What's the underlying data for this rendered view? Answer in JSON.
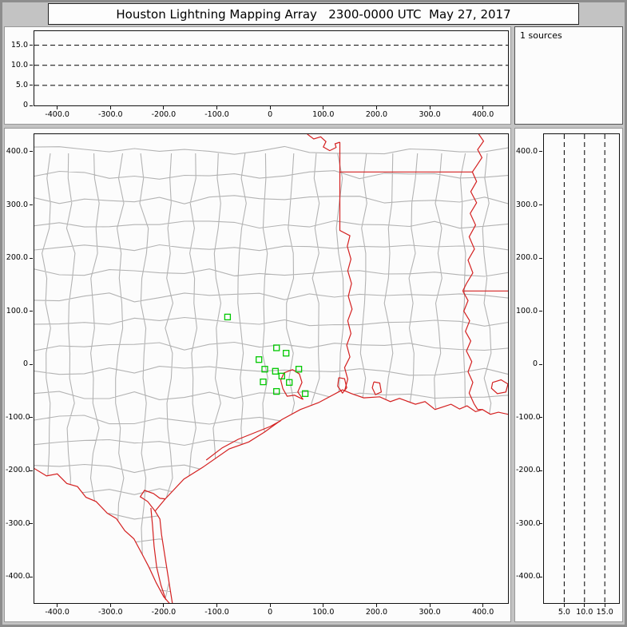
{
  "title": "Houston Lightning Mapping Array   2300-0000 UTC  May 27, 2017",
  "sources_label": "1 sources",
  "colors": {
    "state_border": "#d42020",
    "county_border": "#b3b3b3",
    "station": "#00c800",
    "dashed_line": "#000000",
    "panel_bg": "#fcfcfc",
    "window_bg": "#c3c3c3",
    "plot_border": "#111111"
  },
  "chart_data": [
    {
      "name": "altitude-ew",
      "type": "scatter",
      "xlim": [
        -443,
        447
      ],
      "ylim": [
        0,
        18.5
      ],
      "dashed_y": [
        5,
        10,
        15
      ],
      "x_ticks": [
        {
          "v": -400,
          "label": "-400.0"
        },
        {
          "v": -300,
          "label": "-300.0"
        },
        {
          "v": -200,
          "label": "-200.0"
        },
        {
          "v": -100,
          "label": "-100.0"
        },
        {
          "v": 0,
          "label": "0"
        },
        {
          "v": 100,
          "label": "100.0"
        },
        {
          "v": 200,
          "label": "200.0"
        },
        {
          "v": 300,
          "label": "300.0"
        },
        {
          "v": 400,
          "label": "400.0"
        }
      ],
      "y_ticks": [
        {
          "v": 15,
          "label": "15.0"
        },
        {
          "v": 10,
          "label": "10.0"
        },
        {
          "v": 5,
          "label": "5.0"
        },
        {
          "v": 0,
          "label": "0"
        }
      ],
      "points": []
    },
    {
      "name": "plan-view",
      "type": "scatter",
      "xlim": [
        -443,
        447
      ],
      "ylim": [
        -449,
        433
      ],
      "x_ticks": [
        {
          "v": -400,
          "label": "-400.0"
        },
        {
          "v": -300,
          "label": "-300.0"
        },
        {
          "v": -200,
          "label": "-200.0"
        },
        {
          "v": -100,
          "label": "-100.0"
        },
        {
          "v": 0,
          "label": "0"
        },
        {
          "v": 100,
          "label": "100.0"
        },
        {
          "v": 200,
          "label": "200.0"
        },
        {
          "v": 300,
          "label": "300.0"
        },
        {
          "v": 400,
          "label": "400.0"
        }
      ],
      "y_ticks": [
        {
          "v": 400,
          "label": "400.0"
        },
        {
          "v": 300,
          "label": "300.0"
        },
        {
          "v": 200,
          "label": "200.0"
        },
        {
          "v": 100,
          "label": "100.0"
        },
        {
          "v": 0,
          "label": "0"
        },
        {
          "v": -100,
          "label": "-100.0"
        },
        {
          "v": -200,
          "label": "-200.0"
        },
        {
          "v": -300,
          "label": "-300.0"
        },
        {
          "v": -400,
          "label": "-400.0"
        }
      ],
      "stations": [
        [
          -80,
          89
        ],
        [
          12,
          31
        ],
        [
          -21,
          9
        ],
        [
          30,
          21
        ],
        [
          -10,
          -9
        ],
        [
          10,
          -13
        ],
        [
          -13,
          -33
        ],
        [
          22,
          -22
        ],
        [
          36,
          -34
        ],
        [
          12,
          -51
        ],
        [
          54,
          -9
        ],
        [
          66,
          -55
        ]
      ]
    },
    {
      "name": "altitude-ns",
      "type": "scatter",
      "xlim": [
        0,
        18.5
      ],
      "ylim": [
        -449,
        433
      ],
      "dashed_x": [
        5,
        10,
        15
      ],
      "x_ticks": [
        {
          "v": 5,
          "label": "5.0"
        },
        {
          "v": 10,
          "label": "10.0"
        },
        {
          "v": 15,
          "label": "15.0"
        }
      ],
      "y_ticks": [
        {
          "v": 400,
          "label": "400.0"
        },
        {
          "v": 300,
          "label": "300.0"
        },
        {
          "v": 200,
          "label": "200.0"
        },
        {
          "v": 100,
          "label": "100.0"
        },
        {
          "v": 0,
          "label": "0"
        },
        {
          "v": -100,
          "label": "-100.0"
        },
        {
          "v": -200,
          "label": "-200.0"
        },
        {
          "v": -300,
          "label": "-300.0"
        },
        {
          "v": -400,
          "label": "-400.0"
        }
      ],
      "points": []
    }
  ],
  "map_features": {
    "rio_grande": [
      [
        -443,
        -196
      ],
      [
        -420,
        -210
      ],
      [
        -400,
        -206
      ],
      [
        -382,
        -224
      ],
      [
        -362,
        -230
      ],
      [
        -346,
        -250
      ],
      [
        -327,
        -258
      ],
      [
        -306,
        -280
      ],
      [
        -289,
        -290
      ],
      [
        -273,
        -313
      ],
      [
        -256,
        -328
      ],
      [
        -241,
        -356
      ],
      [
        -228,
        -381
      ],
      [
        -214,
        -411
      ],
      [
        -200,
        -437
      ],
      [
        -188,
        -451
      ],
      [
        -182,
        -460
      ]
    ],
    "coastline": [
      [
        -182,
        -460
      ],
      [
        -197,
        -365
      ],
      [
        -204,
        -320
      ],
      [
        -207,
        -291
      ],
      [
        -216,
        -276
      ],
      [
        -197,
        -253
      ],
      [
        -162,
        -216
      ],
      [
        -127,
        -194
      ],
      [
        -77,
        -159
      ],
      [
        -40,
        -146
      ],
      [
        -10,
        -127
      ],
      [
        22,
        -104
      ],
      [
        57,
        -85
      ],
      [
        91,
        -72
      ],
      [
        136,
        -48
      ],
      [
        153,
        -55
      ],
      [
        176,
        -63
      ],
      [
        206,
        -61
      ],
      [
        226,
        -70
      ],
      [
        243,
        -64
      ],
      [
        273,
        -75
      ],
      [
        291,
        -70
      ],
      [
        310,
        -85
      ],
      [
        340,
        -75
      ],
      [
        356,
        -84
      ],
      [
        370,
        -78
      ],
      [
        386,
        -89
      ],
      [
        399,
        -85
      ],
      [
        414,
        -94
      ],
      [
        429,
        -90
      ],
      [
        452,
        -95
      ]
    ],
    "tx_la_sabine_border": [
      [
        140,
        -50
      ],
      [
        146,
        -28
      ],
      [
        140,
        -6
      ],
      [
        150,
        14
      ],
      [
        144,
        36
      ],
      [
        152,
        58
      ],
      [
        146,
        82
      ],
      [
        154,
        104
      ],
      [
        147,
        128
      ],
      [
        153,
        152
      ],
      [
        146,
        176
      ],
      [
        152,
        198
      ],
      [
        145,
        222
      ],
      [
        150,
        242
      ],
      [
        131,
        252
      ],
      [
        131,
        418
      ]
    ],
    "red_river": [
      [
        70,
        433
      ],
      [
        82,
        424
      ],
      [
        95,
        428
      ],
      [
        105,
        419
      ],
      [
        100,
        409
      ],
      [
        112,
        402
      ],
      [
        124,
        408
      ],
      [
        122,
        415
      ],
      [
        131,
        418
      ]
    ],
    "la_ar_border_33n": [
      [
        131,
        362
      ],
      [
        380,
        362
      ]
    ],
    "mississippi_river": [
      [
        392,
        433
      ],
      [
        401,
        420
      ],
      [
        390,
        404
      ],
      [
        398,
        389
      ],
      [
        387,
        372
      ],
      [
        380,
        362
      ],
      [
        388,
        344
      ],
      [
        377,
        325
      ],
      [
        388,
        304
      ],
      [
        376,
        284
      ],
      [
        386,
        262
      ],
      [
        374,
        240
      ],
      [
        384,
        217
      ],
      [
        372,
        196
      ],
      [
        381,
        172
      ],
      [
        369,
        152
      ],
      [
        362,
        138
      ]
    ],
    "ms_la_border_31n": [
      [
        362,
        138
      ],
      [
        452,
        138
      ]
    ],
    "mississippi_lower": [
      [
        362,
        138
      ],
      [
        372,
        120
      ],
      [
        364,
        100
      ],
      [
        375,
        82
      ],
      [
        367,
        62
      ],
      [
        377,
        44
      ],
      [
        369,
        25
      ],
      [
        379,
        5
      ],
      [
        372,
        -14
      ],
      [
        381,
        -34
      ],
      [
        374,
        -54
      ],
      [
        383,
        -74
      ],
      [
        390,
        -85
      ],
      [
        399,
        -85
      ]
    ],
    "galveston_bay": [
      [
        26,
        -16
      ],
      [
        42,
        -10
      ],
      [
        55,
        -18
      ],
      [
        60,
        -34
      ],
      [
        52,
        -52
      ],
      [
        62,
        -66
      ],
      [
        46,
        -58
      ],
      [
        32,
        -60
      ],
      [
        24,
        -46
      ],
      [
        20,
        -30
      ],
      [
        26,
        -16
      ]
    ],
    "sabine_lake": [
      [
        129,
        -25
      ],
      [
        140,
        -27
      ],
      [
        144,
        -44
      ],
      [
        136,
        -54
      ],
      [
        127,
        -41
      ],
      [
        129,
        -25
      ]
    ],
    "calcasieu_lake": [
      [
        195,
        -33
      ],
      [
        206,
        -35
      ],
      [
        209,
        -52
      ],
      [
        198,
        -57
      ],
      [
        192,
        -44
      ],
      [
        195,
        -33
      ]
    ],
    "matagorda_inner_shore": [
      [
        -120,
        -180
      ],
      [
        -90,
        -157
      ],
      [
        -60,
        -141
      ],
      [
        -30,
        -129
      ],
      [
        0,
        -117
      ],
      [
        20,
        -106
      ]
    ],
    "laguna_madre_inner_shore": [
      [
        -224,
        -270
      ],
      [
        -221,
        -302
      ],
      [
        -218,
        -342
      ],
      [
        -213,
        -382
      ],
      [
        -205,
        -416
      ],
      [
        -196,
        -443
      ]
    ],
    "corpus_christi_bay": [
      [
        -216,
        -276
      ],
      [
        -230,
        -258
      ],
      [
        -244,
        -249
      ],
      [
        -236,
        -237
      ],
      [
        -219,
        -243
      ],
      [
        -207,
        -252
      ],
      [
        -197,
        -253
      ]
    ],
    "lake_pontchartrain": [
      [
        418,
        -34
      ],
      [
        434,
        -29
      ],
      [
        447,
        -37
      ],
      [
        443,
        -52
      ],
      [
        427,
        -55
      ],
      [
        416,
        -45
      ],
      [
        418,
        -34
      ]
    ]
  }
}
